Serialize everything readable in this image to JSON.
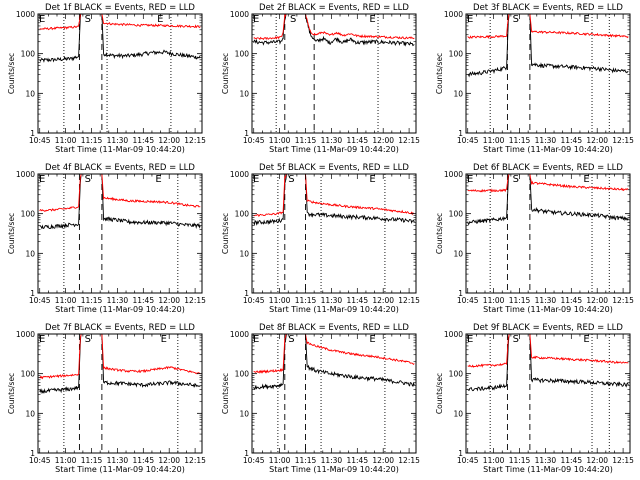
{
  "figure": {
    "background": "#ffffff"
  },
  "colors": {
    "events": "#000000",
    "lld": "#ff0000",
    "axis": "#000000"
  },
  "shared": {
    "ylabel": "Counts/sec",
    "xlabel": "Start Time (11-Mar-09 10:44:20)",
    "x_tick_labels": [
      "10:45",
      "11:00",
      "11:15",
      "11:30",
      "11:45",
      "12:00",
      "12:15"
    ],
    "y_tick_labels": [
      "1",
      "10",
      "100",
      "1000"
    ],
    "marker_s": "S",
    "marker_e": "E"
  },
  "chart_data": [
    {
      "type": "line",
      "title": "Det 1f BLACK = Events, RED = LLD",
      "y_scale": "log",
      "ylim": [
        1,
        1000
      ],
      "xlim_minutes": [
        -1,
        94
      ],
      "series": [
        {
          "color": "#000000",
          "x": [
            0,
            6,
            12,
            18,
            22.5,
            23.5,
            24,
            30,
            36,
            37,
            42,
            50,
            58,
            64,
            72,
            80,
            88,
            93
          ],
          "y": [
            68,
            70,
            72,
            75,
            85,
            800,
            1000,
            1000,
            1000,
            100,
            90,
            88,
            95,
            105,
            110,
            95,
            85,
            80
          ]
        },
        {
          "color": "#ff0000",
          "x": [
            0,
            6,
            12,
            18,
            22.5,
            23.5,
            24,
            30,
            36,
            37,
            42,
            50,
            58,
            64,
            72,
            80,
            88,
            93
          ],
          "y": [
            420,
            430,
            445,
            460,
            480,
            900,
            1000,
            1000,
            1000,
            600,
            560,
            540,
            520,
            520,
            510,
            500,
            490,
            480
          ]
        }
      ],
      "markers": {
        "dotted": [
          14,
          39,
          76
        ],
        "dashed": [
          23,
          36
        ],
        "S_at": 26,
        "E_at": 68
      }
    },
    {
      "type": "line",
      "title": "Det 2f BLACK = Events, RED = LLD",
      "y_scale": "log",
      "ylim": [
        1,
        1000
      ],
      "xlim_minutes": [
        -1,
        94
      ],
      "series": [
        {
          "color": "#000000",
          "x": [
            0,
            6,
            12,
            16,
            17,
            18,
            19,
            22,
            30,
            32,
            33,
            36,
            40,
            44,
            48,
            52,
            56,
            60,
            70,
            80,
            88,
            93
          ],
          "y": [
            200,
            190,
            195,
            200,
            260,
            800,
            1000,
            1000,
            1000,
            400,
            300,
            200,
            240,
            190,
            240,
            190,
            230,
            190,
            200,
            190,
            180,
            170
          ]
        },
        {
          "color": "#ff0000",
          "x": [
            0,
            6,
            12,
            16,
            17,
            18,
            19,
            22,
            30,
            32,
            33,
            36,
            40,
            44,
            48,
            52,
            56,
            60,
            70,
            80,
            88,
            93
          ],
          "y": [
            240,
            240,
            250,
            260,
            350,
            900,
            1000,
            1000,
            1000,
            450,
            340,
            300,
            350,
            290,
            340,
            290,
            320,
            280,
            270,
            260,
            250,
            250
          ]
        }
      ],
      "markers": {
        "dotted": [
          13,
          72
        ],
        "dashed": [
          18,
          35
        ],
        "S_at": 21,
        "E_at": 67
      }
    },
    {
      "type": "line",
      "title": "Det 3f BLACK = Events, RED = LLD",
      "y_scale": "log",
      "ylim": [
        1,
        1000
      ],
      "xlim_minutes": [
        -1,
        94
      ],
      "series": [
        {
          "color": "#000000",
          "x": [
            0,
            8,
            16,
            22.5,
            23.5,
            24,
            30,
            36,
            37,
            44,
            52,
            60,
            68,
            76,
            84,
            93
          ],
          "y": [
            30,
            33,
            38,
            45,
            700,
            1000,
            1000,
            1000,
            55,
            50,
            48,
            46,
            44,
            42,
            38,
            36
          ]
        },
        {
          "color": "#ff0000",
          "x": [
            0,
            8,
            16,
            22.5,
            23.5,
            24,
            30,
            36,
            37,
            44,
            52,
            60,
            68,
            76,
            84,
            93
          ],
          "y": [
            260,
            265,
            270,
            280,
            800,
            1000,
            1000,
            1000,
            360,
            350,
            340,
            330,
            315,
            300,
            285,
            270
          ]
        }
      ],
      "markers": {
        "dotted": [
          13,
          72,
          82
        ],
        "dashed": [
          23,
          36
        ],
        "S_at": 26,
        "E_at": 67
      }
    },
    {
      "type": "line",
      "title": "Det 4f BLACK = Events, RED = LLD",
      "y_scale": "log",
      "ylim": [
        1,
        1000
      ],
      "xlim_minutes": [
        -1,
        94
      ],
      "series": [
        {
          "color": "#000000",
          "x": [
            0,
            8,
            16,
            22.5,
            23.5,
            24,
            30,
            36,
            37,
            44,
            52,
            60,
            68,
            76,
            84,
            93
          ],
          "y": [
            45,
            48,
            52,
            55,
            600,
            1000,
            1000,
            1000,
            75,
            70,
            62,
            60,
            60,
            58,
            52,
            50
          ]
        },
        {
          "color": "#ff0000",
          "x": [
            0,
            8,
            16,
            22.5,
            23.5,
            24,
            30,
            36,
            37,
            44,
            52,
            60,
            68,
            76,
            84,
            93
          ],
          "y": [
            120,
            125,
            135,
            150,
            800,
            1000,
            1000,
            1000,
            250,
            230,
            210,
            205,
            200,
            190,
            165,
            150
          ]
        }
      ],
      "markers": {
        "dotted": [
          14,
          80
        ],
        "dashed": [
          23,
          36
        ],
        "S_at": 26,
        "E_at": 67
      }
    },
    {
      "type": "line",
      "title": "Det 5f BLACK = Events, RED = LLD",
      "y_scale": "log",
      "ylim": [
        1,
        1000
      ],
      "xlim_minutes": [
        -1,
        94
      ],
      "series": [
        {
          "color": "#000000",
          "x": [
            0,
            8,
            14,
            17,
            18,
            19,
            22,
            28,
            30,
            31,
            36,
            44,
            52,
            60,
            70,
            80,
            88,
            93
          ],
          "y": [
            60,
            62,
            65,
            72,
            600,
            1000,
            1000,
            1000,
            1000,
            100,
            95,
            90,
            85,
            82,
            78,
            72,
            68,
            62
          ]
        },
        {
          "color": "#ff0000",
          "x": [
            0,
            8,
            14,
            17,
            18,
            19,
            22,
            28,
            30,
            31,
            36,
            44,
            52,
            60,
            70,
            80,
            88,
            93
          ],
          "y": [
            90,
            95,
            100,
            110,
            800,
            1000,
            1000,
            1000,
            1000,
            210,
            190,
            170,
            155,
            145,
            135,
            120,
            110,
            100
          ]
        }
      ],
      "markers": {
        "dotted": [
          14,
          39,
          76
        ],
        "dashed": [
          18,
          30
        ],
        "S_at": 20,
        "E_at": 67
      }
    },
    {
      "type": "line",
      "title": "Det 6f BLACK = Events, RED = LLD",
      "y_scale": "log",
      "ylim": [
        1,
        1000
      ],
      "xlim_minutes": [
        -1,
        94
      ],
      "series": [
        {
          "color": "#000000",
          "x": [
            0,
            8,
            16,
            22.5,
            23.5,
            24,
            30,
            36,
            37,
            44,
            52,
            60,
            68,
            76,
            84,
            93
          ],
          "y": [
            60,
            65,
            70,
            80,
            700,
            1000,
            1000,
            1000,
            130,
            115,
            105,
            100,
            95,
            90,
            80,
            75
          ]
        },
        {
          "color": "#ff0000",
          "x": [
            0,
            8,
            16,
            22.5,
            23.5,
            24,
            30,
            36,
            37,
            44,
            52,
            60,
            68,
            76,
            84,
            93
          ],
          "y": [
            380,
            380,
            385,
            390,
            900,
            1000,
            1000,
            1000,
            600,
            560,
            520,
            480,
            460,
            440,
            420,
            400
          ]
        }
      ],
      "markers": {
        "dotted": [
          13,
          72,
          82
        ],
        "dashed": [
          23,
          36
        ],
        "S_at": 26,
        "E_at": 67
      }
    },
    {
      "type": "line",
      "title": "Det 7f BLACK = Events, RED = LLD",
      "y_scale": "log",
      "ylim": [
        1,
        1000
      ],
      "xlim_minutes": [
        -1,
        94
      ],
      "series": [
        {
          "color": "#000000",
          "x": [
            0,
            8,
            16,
            22.5,
            23.5,
            24,
            30,
            36,
            37,
            44,
            52,
            60,
            68,
            76,
            84,
            93
          ],
          "y": [
            35,
            38,
            40,
            45,
            600,
            1000,
            1000,
            1000,
            60,
            58,
            55,
            52,
            55,
            60,
            55,
            48
          ]
        },
        {
          "color": "#ff0000",
          "x": [
            0,
            8,
            16,
            22.5,
            23.5,
            24,
            30,
            36,
            37,
            44,
            52,
            60,
            68,
            76,
            84,
            93
          ],
          "y": [
            80,
            85,
            90,
            95,
            800,
            1000,
            1000,
            1000,
            140,
            125,
            115,
            115,
            130,
            145,
            120,
            100
          ]
        }
      ],
      "markers": {
        "dotted": [
          14,
          80
        ],
        "dashed": [
          23,
          36
        ],
        "S_at": 26,
        "E_at": 70
      }
    },
    {
      "type": "line",
      "title": "Det 8f BLACK = Events, RED = LLD",
      "y_scale": "log",
      "ylim": [
        1,
        1000
      ],
      "xlim_minutes": [
        -1,
        94
      ],
      "series": [
        {
          "color": "#000000",
          "x": [
            0,
            8,
            14,
            17,
            18,
            19,
            22,
            28,
            30,
            31,
            36,
            44,
            52,
            60,
            70,
            80,
            88,
            93
          ],
          "y": [
            45,
            48,
            50,
            55,
            600,
            1000,
            1000,
            1000,
            1000,
            150,
            120,
            100,
            90,
            80,
            75,
            65,
            58,
            52
          ]
        },
        {
          "color": "#ff0000",
          "x": [
            0,
            8,
            14,
            17,
            18,
            19,
            22,
            28,
            30,
            31,
            36,
            44,
            52,
            60,
            70,
            80,
            88,
            93
          ],
          "y": [
            110,
            115,
            120,
            125,
            800,
            1000,
            1000,
            1000,
            1000,
            600,
            500,
            400,
            340,
            300,
            270,
            230,
            200,
            180
          ]
        }
      ],
      "markers": {
        "dotted": [
          14,
          39,
          76
        ],
        "dashed": [
          18,
          30
        ],
        "S_at": 20,
        "E_at": 67
      }
    },
    {
      "type": "line",
      "title": "Det 9f BLACK = Events, RED = LLD",
      "y_scale": "log",
      "ylim": [
        1,
        1000
      ],
      "xlim_minutes": [
        -1,
        94
      ],
      "series": [
        {
          "color": "#000000",
          "x": [
            0,
            8,
            16,
            22.5,
            23.5,
            24,
            30,
            36,
            37,
            44,
            52,
            60,
            68,
            76,
            84,
            93
          ],
          "y": [
            40,
            42,
            45,
            50,
            600,
            1000,
            1000,
            1000,
            70,
            68,
            66,
            64,
            62,
            58,
            55,
            52
          ]
        },
        {
          "color": "#ff0000",
          "x": [
            0,
            8,
            16,
            22.5,
            23.5,
            24,
            30,
            36,
            37,
            44,
            52,
            60,
            68,
            76,
            84,
            93
          ],
          "y": [
            155,
            160,
            165,
            175,
            800,
            1000,
            1000,
            1000,
            260,
            250,
            240,
            230,
            220,
            210,
            195,
            185
          ]
        }
      ],
      "markers": {
        "dotted": [
          13,
          72,
          82
        ],
        "dashed": [
          23,
          36
        ],
        "S_at": 26,
        "E_at": 67
      }
    }
  ]
}
